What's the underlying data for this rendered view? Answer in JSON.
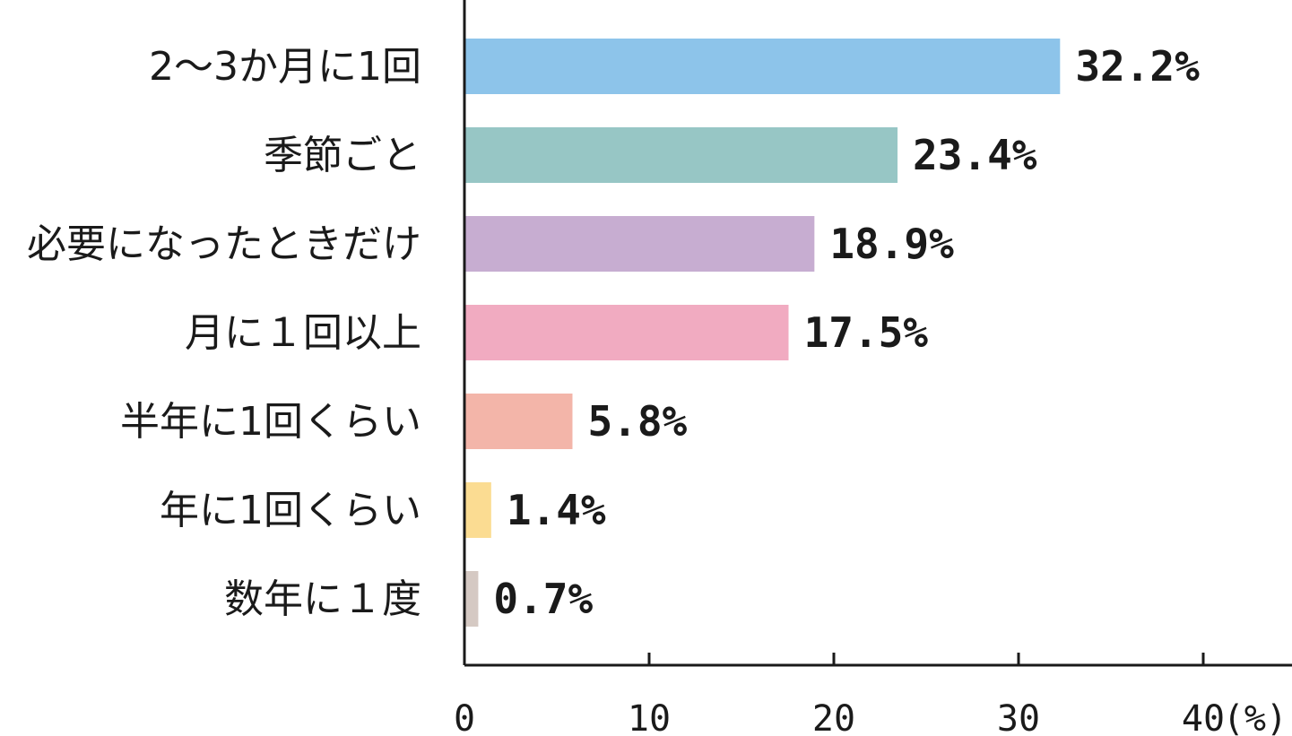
{
  "chart_data": {
    "type": "bar",
    "orientation": "horizontal",
    "categories": [
      "2〜3か月に1回",
      "季節ごと",
      "必要になったときだけ",
      "月に１回以上",
      "半年に1回くらい",
      "年に1回くらい",
      "数年に１度"
    ],
    "values": [
      32.2,
      23.4,
      18.9,
      17.5,
      5.8,
      1.4,
      0.7
    ],
    "value_labels": [
      "32.2%",
      "23.4%",
      "18.9%",
      "17.5%",
      "5.8%",
      "1.4%",
      "0.7%"
    ],
    "colors": [
      "#8dc4ea",
      "#97c6c5",
      "#c7add1",
      "#f1abc1",
      "#f3b5a9",
      "#fbdc92",
      "#d5c9c3"
    ],
    "xlim": [
      0,
      45
    ],
    "xticks": [
      0,
      10,
      20,
      30,
      40
    ],
    "x_tick_labels": [
      "0",
      "10",
      "20",
      "30",
      "40"
    ],
    "x_unit": "(%)",
    "grid": false,
    "legend": "none"
  }
}
